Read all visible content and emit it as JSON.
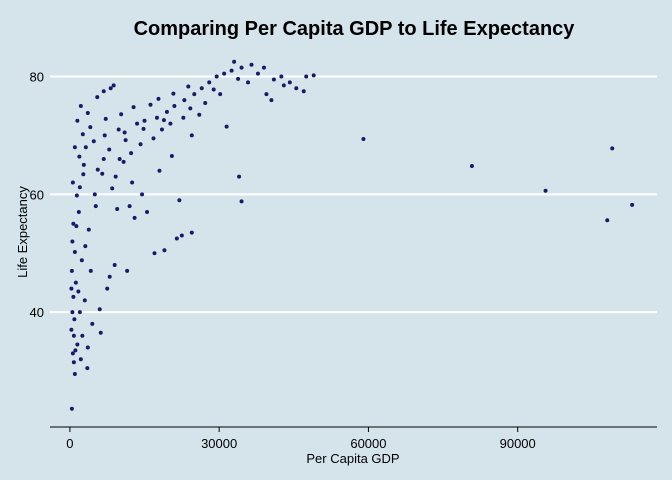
{
  "chart_data": {
    "type": "scatter",
    "title": "Comparing Per Capita GDP to Life Expectancy",
    "xlabel": "Per Capita GDP",
    "ylabel": "Life Expectancy",
    "xlim": [
      -4000,
      118000
    ],
    "ylim": [
      20.5,
      84.5
    ],
    "xticks": [
      0,
      30000,
      60000,
      90000
    ],
    "xtick_labels": [
      "0",
      "30000",
      "60000",
      "90000"
    ],
    "yticks": [
      40,
      60,
      80
    ],
    "ytick_labels": [
      "40",
      "60",
      "80"
    ],
    "grid": "horizontal",
    "legend": "none",
    "colors": {
      "background": "#d5e4eb",
      "points": "#1a1a66",
      "grid": "#ffffff",
      "axis": "#000000"
    },
    "points": [
      [
        400,
        23.6
      ],
      [
        1000,
        29.5
      ],
      [
        3500,
        30.5
      ],
      [
        800,
        31.5
      ],
      [
        600,
        33
      ],
      [
        1500,
        34.5
      ],
      [
        2500,
        36
      ],
      [
        300,
        37
      ],
      [
        4500,
        38
      ],
      [
        2000,
        40
      ],
      [
        6000,
        40.5
      ],
      [
        3000,
        42
      ],
      [
        7500,
        44
      ],
      [
        1200,
        45
      ],
      [
        8000,
        46
      ],
      [
        11500,
        47
      ],
      [
        9000,
        48
      ],
      [
        17000,
        50
      ],
      [
        19000,
        50.5
      ],
      [
        21500,
        52.5
      ],
      [
        22500,
        53
      ],
      [
        24500,
        53.5
      ],
      [
        700,
        55
      ],
      [
        13000,
        56
      ],
      [
        1800,
        57
      ],
      [
        15500,
        57
      ],
      [
        9500,
        57.5
      ],
      [
        12000,
        58
      ],
      [
        34500,
        58.8
      ],
      [
        22000,
        59
      ],
      [
        5000,
        60
      ],
      [
        14500,
        60
      ],
      [
        8500,
        61
      ],
      [
        12500,
        62
      ],
      [
        34000,
        63
      ],
      [
        6500,
        63.5
      ],
      [
        18000,
        64
      ],
      [
        2800,
        65
      ],
      [
        10000,
        66
      ],
      [
        20500,
        66.5
      ],
      [
        80800,
        64.8
      ],
      [
        95600,
        60.6
      ],
      [
        108000,
        55.6
      ],
      [
        113000,
        58.2
      ],
      [
        109000,
        67.8
      ],
      [
        59000,
        69.4
      ],
      [
        3200,
        68
      ],
      [
        4800,
        69
      ],
      [
        7000,
        70
      ],
      [
        9800,
        71
      ],
      [
        11000,
        70.5
      ],
      [
        13500,
        72
      ],
      [
        15000,
        72.5
      ],
      [
        17500,
        73
      ],
      [
        19500,
        74
      ],
      [
        21000,
        75
      ],
      [
        23000,
        76
      ],
      [
        25000,
        77
      ],
      [
        26500,
        78
      ],
      [
        28000,
        79
      ],
      [
        29500,
        80
      ],
      [
        31000,
        80.5
      ],
      [
        32500,
        81
      ],
      [
        33000,
        82.5
      ],
      [
        34500,
        81.5
      ],
      [
        36500,
        82
      ],
      [
        39000,
        81.5
      ],
      [
        41000,
        79.5
      ],
      [
        43000,
        78.5
      ],
      [
        45500,
        78
      ],
      [
        47500,
        80
      ],
      [
        49000,
        80.2
      ],
      [
        39500,
        77
      ],
      [
        40500,
        76
      ],
      [
        47000,
        77.5
      ],
      [
        31500,
        71.5
      ],
      [
        24500,
        70
      ],
      [
        26000,
        73.5
      ],
      [
        2200,
        75
      ],
      [
        5500,
        76.5
      ],
      [
        8200,
        78
      ],
      [
        8800,
        78.5
      ],
      [
        6800,
        77.5
      ],
      [
        1500,
        72.5
      ],
      [
        1000,
        68
      ],
      [
        600,
        62
      ],
      [
        500,
        52
      ],
      [
        400,
        47
      ],
      [
        300,
        44
      ],
      [
        500,
        40
      ],
      [
        800,
        36
      ],
      [
        1100,
        33.5
      ],
      [
        2200,
        32
      ],
      [
        3600,
        34
      ],
      [
        6200,
        36.5
      ],
      [
        4200,
        47
      ],
      [
        3800,
        54
      ],
      [
        5200,
        58
      ],
      [
        6800,
        66
      ],
      [
        9200,
        63
      ],
      [
        10800,
        65.5
      ],
      [
        12300,
        67
      ],
      [
        14200,
        68.5
      ],
      [
        16800,
        69.5
      ],
      [
        18500,
        71
      ],
      [
        20200,
        72
      ],
      [
        22800,
        73
      ],
      [
        27200,
        75.5
      ],
      [
        30200,
        77
      ],
      [
        35800,
        79
      ],
      [
        37800,
        80.5
      ],
      [
        42500,
        80
      ],
      [
        44200,
        79
      ],
      [
        16200,
        75.2
      ],
      [
        12800,
        74.8
      ],
      [
        10300,
        73.6
      ],
      [
        7200,
        72.8
      ],
      [
        4100,
        71.4
      ],
      [
        3600,
        73.8
      ],
      [
        2600,
        70.2
      ],
      [
        1900,
        66.4
      ],
      [
        1400,
        59.8
      ],
      [
        1000,
        50.2
      ],
      [
        700,
        42.6
      ],
      [
        900,
        38.8
      ],
      [
        1700,
        43.5
      ],
      [
        2400,
        48.8
      ],
      [
        3100,
        51.2
      ],
      [
        1300,
        54.6
      ],
      [
        2000,
        61.2
      ],
      [
        2700,
        63.4
      ],
      [
        5600,
        64.2
      ],
      [
        7900,
        67.6
      ],
      [
        11200,
        69.2
      ],
      [
        14800,
        71.1
      ],
      [
        18900,
        72.6
      ],
      [
        24200,
        74.6
      ],
      [
        28900,
        77.8
      ],
      [
        33800,
        79.6
      ],
      [
        23800,
        78.3
      ],
      [
        20800,
        77.1
      ],
      [
        17800,
        76.2
      ]
    ]
  }
}
